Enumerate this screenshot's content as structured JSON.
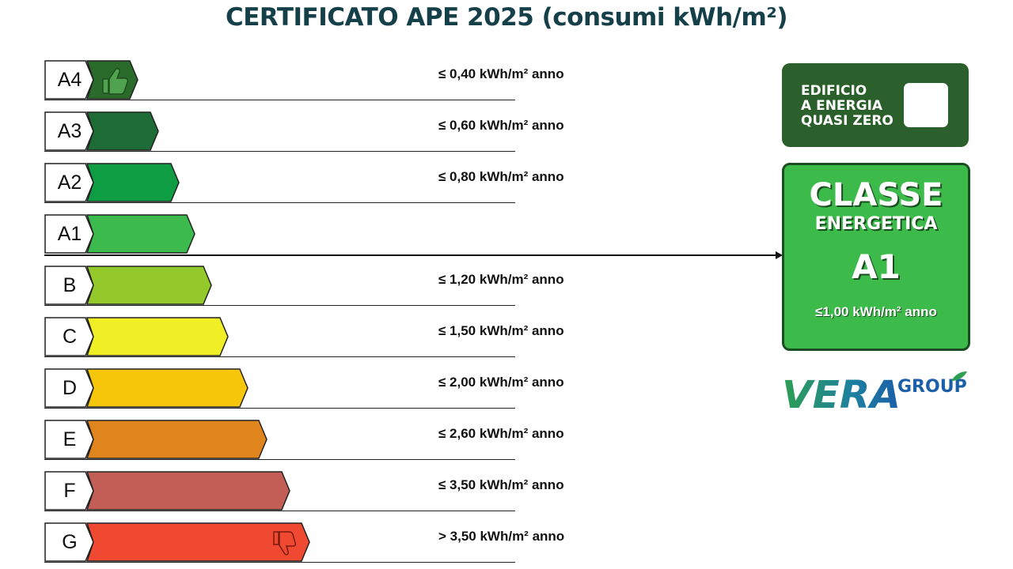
{
  "title": "CERTIFICATO APE 2025 (consumi kWh/m²)",
  "colors": {
    "title": "#15404a",
    "nzeb_bg": "#2b5f2b",
    "class_box_bg": "#3dbb4a",
    "logo_green": "#2e9e52",
    "logo_blue": "#1b5fa8"
  },
  "classes": [
    {
      "label": "A4",
      "value": "≤ 0,40 kWh/m² anno",
      "color": "#2a6a2a",
      "icon": "thumbs-up-icon"
    },
    {
      "label": "A3",
      "value": "≤ 0,60 kWh/m² anno",
      "color": "#1d6b35"
    },
    {
      "label": "A2",
      "value": "≤ 0,80 kWh/m² anno",
      "color": "#0f9d44"
    },
    {
      "label": "A1",
      "value": "",
      "color": "#3cba4d"
    },
    {
      "label": "B",
      "value": "≤ 1,20 kWh/m² anno",
      "color": "#94c92c"
    },
    {
      "label": "C",
      "value": "≤ 1,50 kWh/m² anno",
      "color": "#f0ee25"
    },
    {
      "label": "D",
      "value": "≤ 2,00 kWh/m² anno",
      "color": "#f6c60b"
    },
    {
      "label": "E",
      "value": "≤ 2,60 kWh/m² anno",
      "color": "#e0851d"
    },
    {
      "label": "F",
      "value": "≤ 3,50 kWh/m² anno",
      "color": "#c25e55"
    },
    {
      "label": "G",
      "value": "> 3,50 kWh/m² anno",
      "color": "#ef4a31",
      "icon": "thumbs-down-icon"
    }
  ],
  "nzeb": {
    "line1": "EDIFICIO",
    "line2": "A ENERGIA",
    "line3": "QUASI ZERO"
  },
  "class_box": {
    "line1": "CLASSE",
    "line2": "ENERGETICA",
    "class": "A1",
    "value": "≤1,00 kWh/m² anno"
  },
  "logo": {
    "name": "VERA",
    "suffix": "GROUP"
  }
}
